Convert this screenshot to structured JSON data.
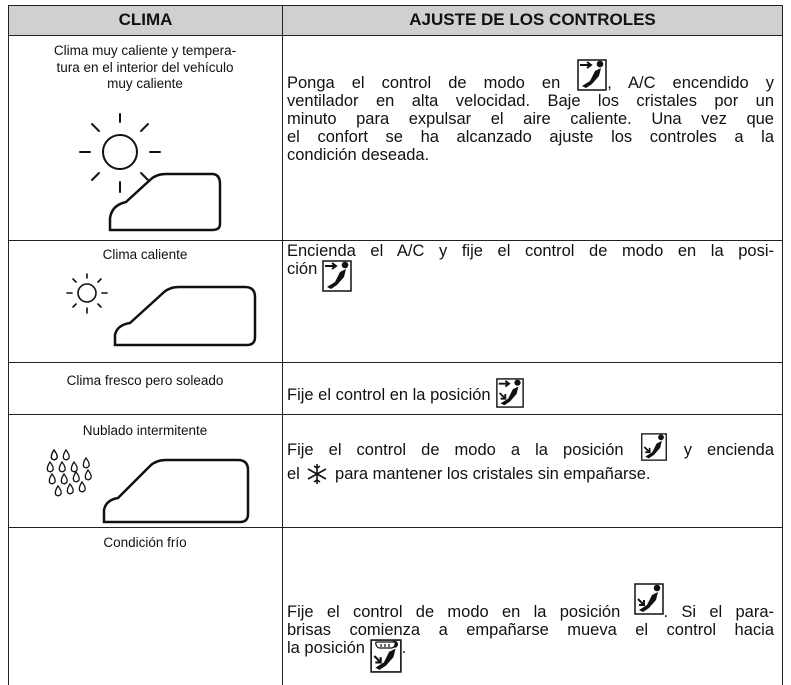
{
  "header": {
    "columns": [
      "CLIMA",
      "AJUSTE DE LOS CONTROLES"
    ]
  },
  "rows": [
    {
      "climate": [
        "Clima muy caliente y tempera-",
        "tura en el interior del vehículo",
        "muy caliente"
      ],
      "settings": [
        [
          "Ponga el control de modo en ",
          ", A/C encendido y"
        ],
        [
          "ventilador en alta velocidad. Baje los cristales por un"
        ],
        [
          "minuto para expulsar el aire caliente. Una vez que"
        ],
        [
          "el confort se ha alcanzado ajuste los controles a la"
        ],
        [
          "condición deseada."
        ]
      ]
    },
    {
      "climate": [
        "Clima caliente"
      ],
      "settings": [
        [
          "Encienda el A/C y fije el control de modo en la posi-"
        ],
        [
          "ción "
        ]
      ]
    },
    {
      "climate": [
        "Clima fresco pero soleado"
      ],
      "settings": [
        [
          "Fije el control en la posición "
        ]
      ]
    },
    {
      "climate": [
        "Nublado intermitente"
      ],
      "settings": [
        [
          "Fije el control de modo a la posición ",
          " y encienda"
        ],
        [
          "el ",
          " para mantener los cristales sin empañarse."
        ]
      ]
    },
    {
      "climate": [
        "Condición frío"
      ],
      "settings": [
        [
          "Fije el control de modo en la posición ",
          ". Si el para-"
        ],
        [
          "brisas comienza a empañarse mueva el control hacia"
        ],
        [
          "la posición ",
          "."
        ]
      ]
    }
  ]
}
